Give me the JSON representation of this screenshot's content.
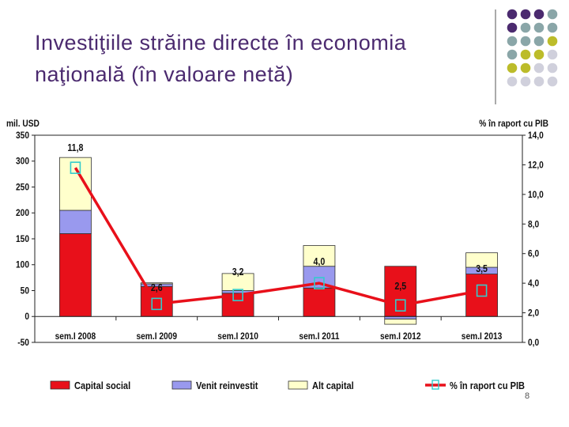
{
  "slide": {
    "title": "Investiţiile străine directe în economia naţională (în valoare netă)",
    "page_number": "8",
    "decor_colors": [
      "#4b2a6f",
      "#8aa6a8",
      "#bcbc2a",
      "#d0d0dc"
    ]
  },
  "chart_data": {
    "type": "bar",
    "stacked": true,
    "categories": [
      "sem.I 2008",
      "sem.I 2009",
      "sem.I 2010",
      "sem.I 2011",
      "sem.I 2012",
      "sem.I 2013"
    ],
    "series": [
      {
        "name": "Capital social",
        "color": "#e8101a",
        "values": [
          160,
          58,
          45,
          55,
          97,
          82
        ]
      },
      {
        "name": "Venit reinvestit",
        "color": "#9999ee",
        "values": [
          45,
          5,
          5,
          42,
          -5,
          13
        ]
      },
      {
        "name": "Alt capital",
        "color": "#ffffcc",
        "values": [
          102,
          2,
          33,
          40,
          -10,
          28
        ]
      }
    ],
    "line_series": {
      "name": "% în raport cu PIB",
      "color": "#e8101a",
      "marker_color": "#33cccc",
      "values": [
        11.8,
        2.6,
        3.2,
        4.0,
        2.5,
        3.5
      ],
      "labels": [
        "11,8",
        "2,6",
        "3,2",
        "4,0",
        "2,5",
        "3,5"
      ],
      "axis": "right"
    },
    "ylabel_left": "mil. USD",
    "ylabel_right": "% în raport cu PIB",
    "ylim_left": [
      -50,
      350
    ],
    "yticks_left": [
      "-50",
      "0",
      "50",
      "100",
      "150",
      "200",
      "250",
      "300",
      "350"
    ],
    "ylim_right": [
      0,
      14
    ],
    "yticks_right": [
      "0,0",
      "2,0",
      "4,0",
      "6,0",
      "8,0",
      "10,0",
      "12,0",
      "14,0"
    ],
    "legend_position": "bottom",
    "grid": false
  }
}
